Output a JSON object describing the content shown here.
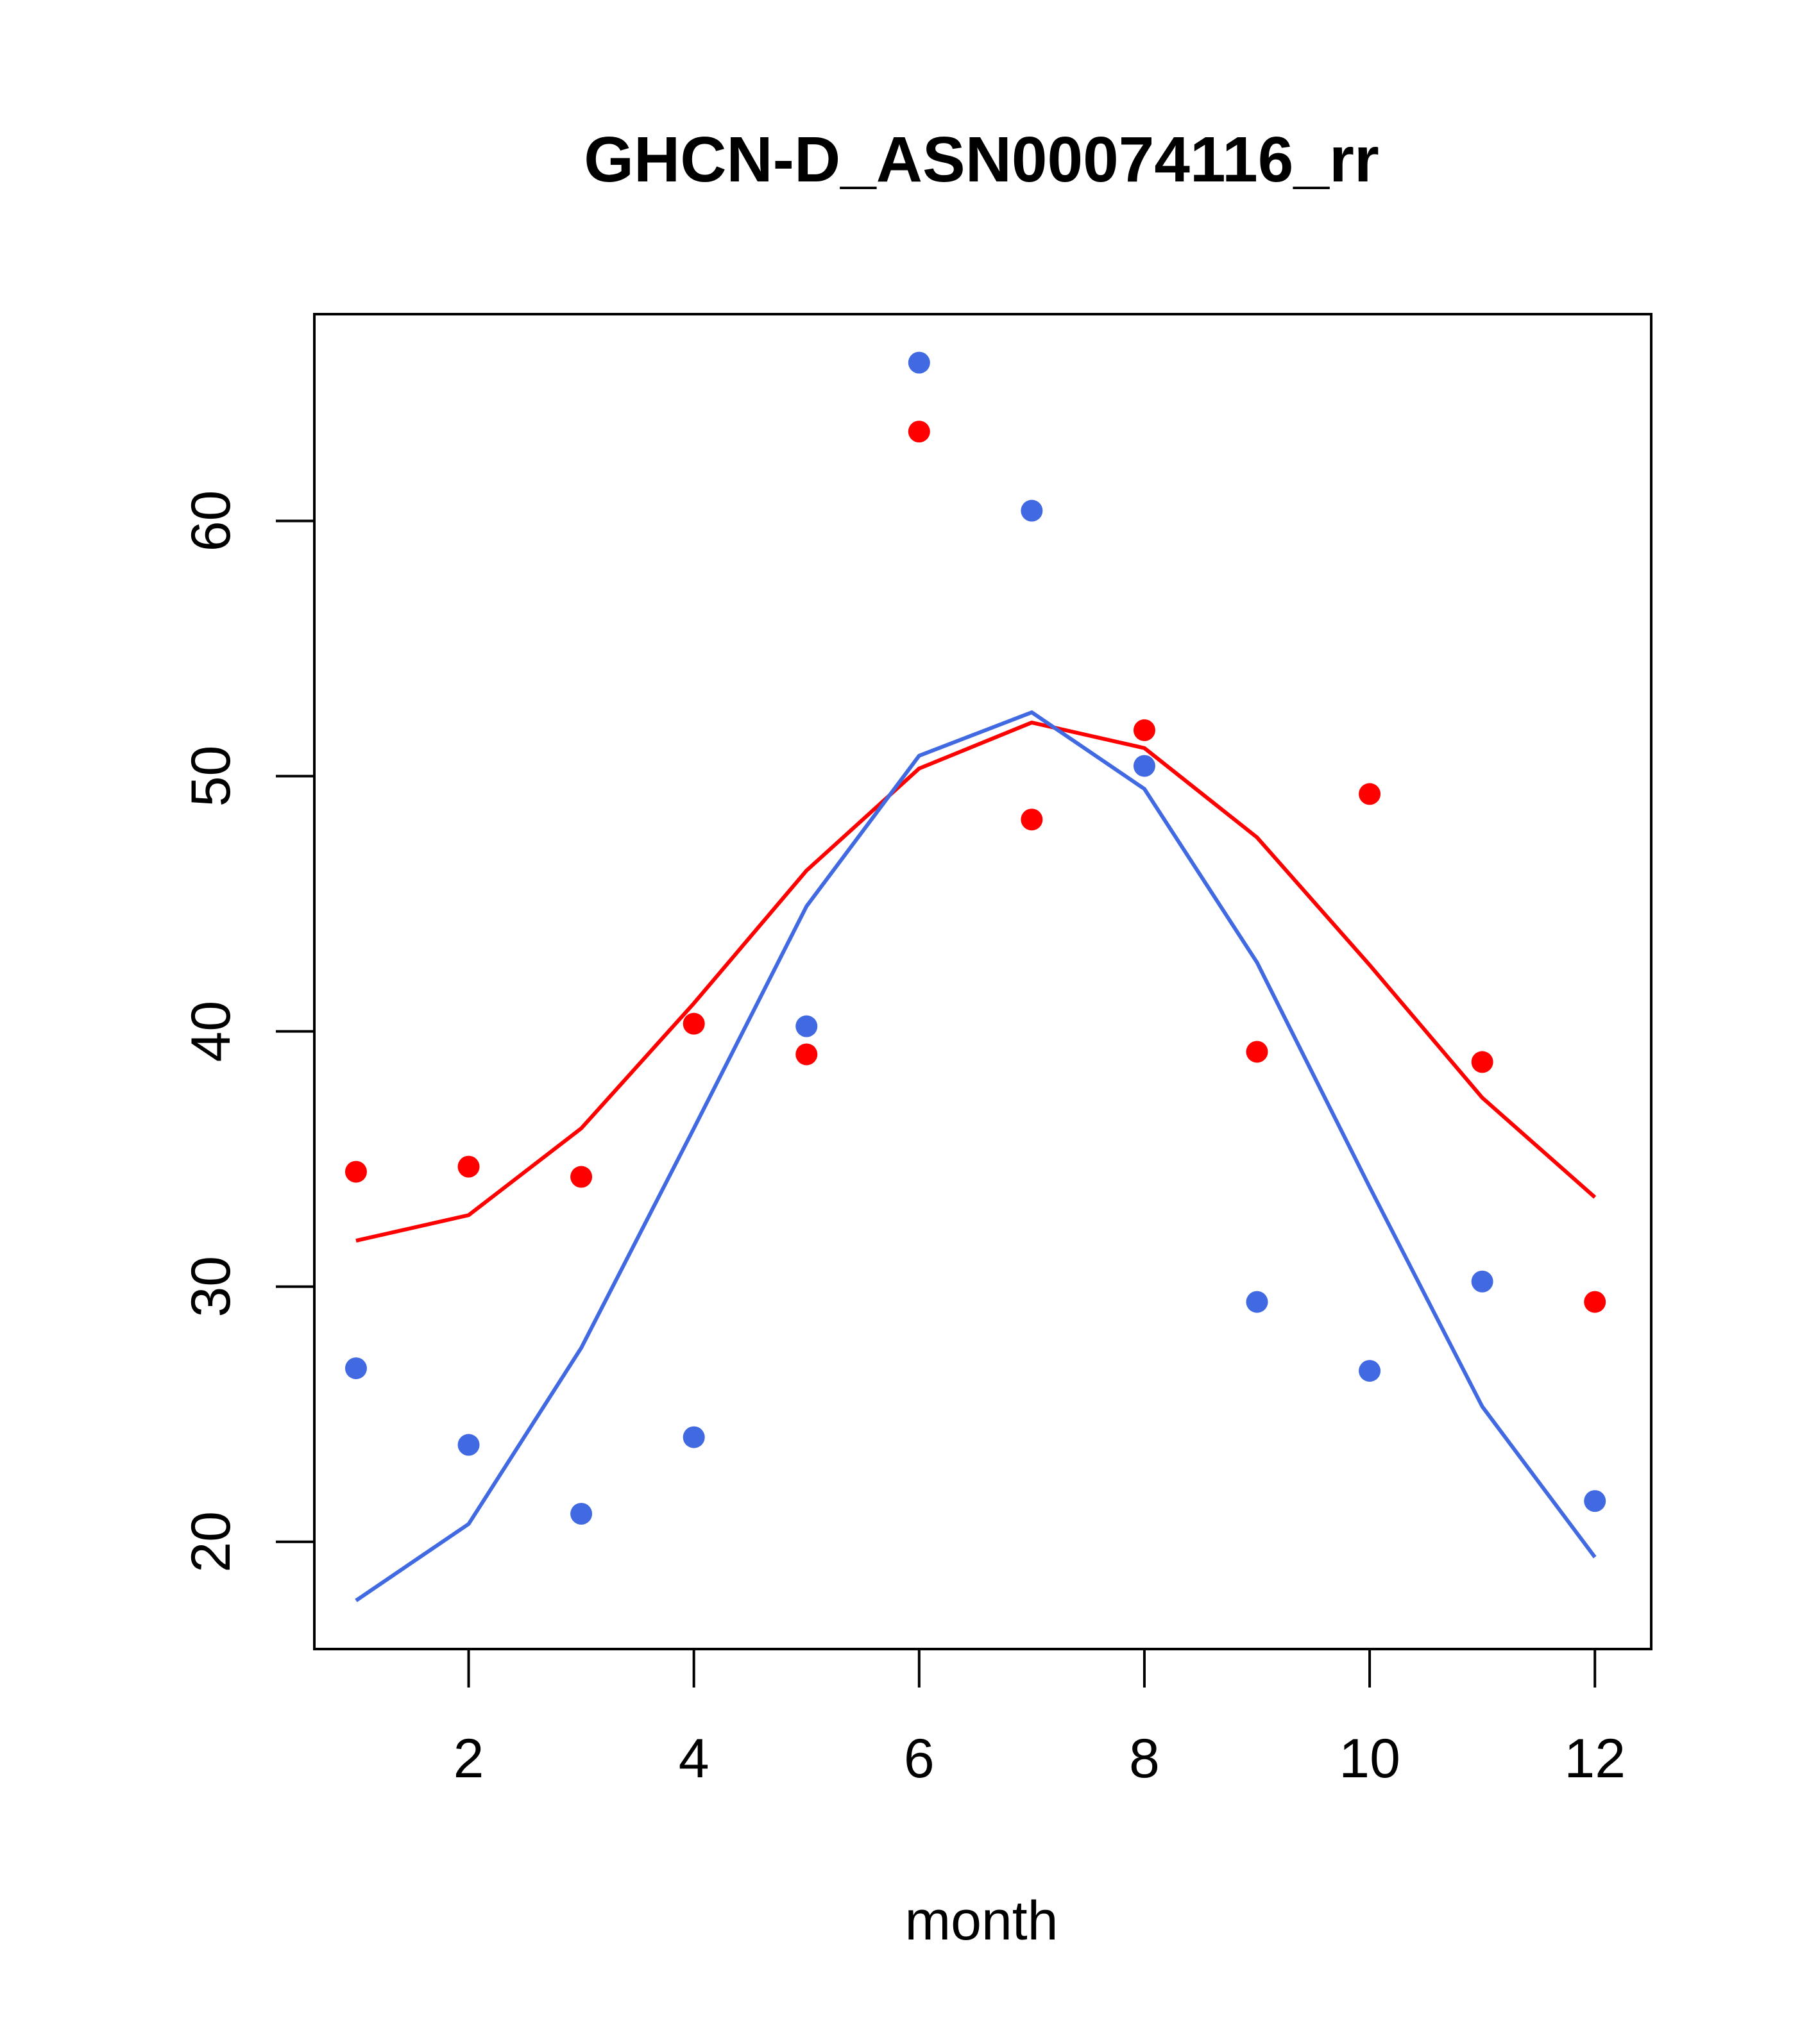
{
  "chart_data": {
    "type": "line+scatter",
    "title": "GHCN-D_ASN00074116_rr",
    "xlabel": "month",
    "ylabel": "",
    "x": [
      1,
      2,
      3,
      4,
      5,
      6,
      7,
      8,
      9,
      10,
      11,
      12
    ],
    "xlim": [
      0.63,
      12.5
    ],
    "ylim": [
      15.8,
      68.1
    ],
    "x_ticks": [
      2,
      4,
      6,
      8,
      10,
      12
    ],
    "y_ticks": [
      20,
      30,
      40,
      50,
      60
    ],
    "grid": false,
    "legend": "none",
    "series": [
      {
        "color": "#ff0000",
        "points": [
          34.5,
          34.7,
          34.3,
          40.3,
          39.1,
          63.5,
          48.3,
          51.8,
          39.2,
          49.3,
          38.8,
          29.4
        ],
        "line": [
          31.8,
          32.8,
          36.2,
          41.1,
          46.3,
          50.3,
          52.1,
          51.1,
          47.6,
          42.6,
          37.4,
          33.5
        ]
      },
      {
        "color": "#4169e1",
        "points": [
          26.8,
          23.8,
          21.1,
          24.1,
          40.2,
          66.2,
          60.4,
          50.4,
          29.4,
          26.7,
          30.2,
          21.6
        ],
        "line": [
          17.7,
          20.7,
          27.6,
          36.2,
          44.9,
          50.8,
          52.5,
          49.5,
          42.7,
          33.9,
          25.3,
          19.4
        ]
      }
    ]
  }
}
